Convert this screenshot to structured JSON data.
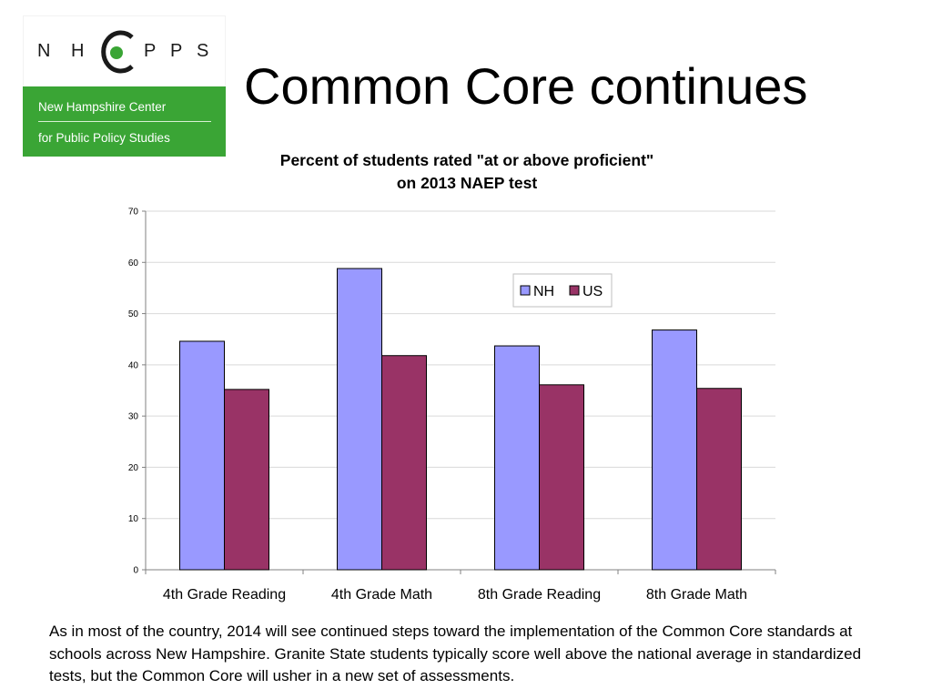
{
  "logo": {
    "letters": [
      "N",
      "H",
      "P",
      "P",
      "S"
    ],
    "line1": "New Hampshire Center",
    "line2": "for Public Policy Studies",
    "band_color": "#3aa535"
  },
  "slide_title": "Common Core continues",
  "chart_data": {
    "type": "bar",
    "title_line1": "Percent of students rated \"at or above proficient\"",
    "title_line2": "on 2013 NAEP test",
    "categories": [
      "4th Grade Reading",
      "4th Grade Math",
      "8th Grade Reading",
      "8th Grade Math"
    ],
    "series": [
      {
        "name": "NH",
        "values": [
          44.6,
          58.8,
          43.7,
          46.8
        ],
        "color": "#9999ff"
      },
      {
        "name": "US",
        "values": [
          35.2,
          41.8,
          36.1,
          35.4
        ],
        "color": "#993366"
      }
    ],
    "ylim": [
      0,
      70
    ],
    "yticks": [
      0,
      10,
      20,
      30,
      40,
      50,
      60,
      70
    ],
    "grid": true,
    "legend_position": "top-right"
  },
  "caption": "As in most of the country, 2014 will see continued steps toward the implementation of the Common Core standards at schools across New Hampshire. Granite State students typically score well above the national average in standardized tests, but the Common Core will usher in a new set of assessments."
}
